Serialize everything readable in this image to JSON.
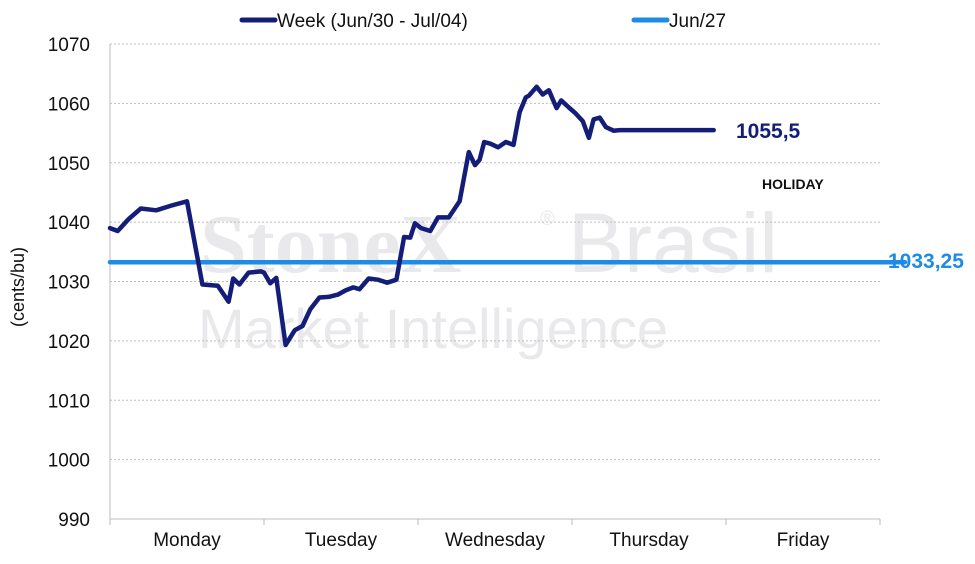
{
  "watermark": {
    "brand_bold": "StoneX",
    "brand_mark": "®",
    "brand_light": "Brasil",
    "tagline": "Market Intelligence"
  },
  "chart_data": {
    "type": "line",
    "ylabel": "(cents/bu)",
    "xlabel": "",
    "ylim": [
      990,
      1070
    ],
    "yticks": [
      990,
      1000,
      1010,
      1020,
      1030,
      1040,
      1050,
      1060,
      1070
    ],
    "categories": [
      "Monday",
      "Tuesday",
      "Wednesday",
      "Thursday",
      "Friday"
    ],
    "grid": "horizontal dotted",
    "legend_position": "top",
    "annotations": {
      "holiday": "HOLIDAY",
      "week_last": "1055,5",
      "reference": "1033,25"
    },
    "series": [
      {
        "name": "Week (Jun/30 - Jul/04)",
        "color": "#141e78",
        "x": [
          0,
          0.05,
          0.12,
          0.2,
          0.3,
          0.4,
          0.5,
          0.6,
          0.7,
          0.77,
          0.8,
          0.84,
          0.9,
          0.98,
          1.0,
          1.04,
          1.08,
          1.14,
          1.2,
          1.25,
          1.3,
          1.36,
          1.42,
          1.48,
          1.53,
          1.58,
          1.62,
          1.68,
          1.74,
          1.8,
          1.86,
          1.91,
          1.95,
          1.98,
          2.02,
          2.08,
          2.13,
          2.2,
          2.27,
          2.33,
          2.37,
          2.4,
          2.43,
          2.47,
          2.52,
          2.57,
          2.62,
          2.66,
          2.7,
          2.72,
          2.77,
          2.81,
          2.85,
          2.9,
          2.93,
          2.98,
          3.02,
          3.07,
          3.11,
          3.14,
          3.18,
          3.22,
          3.27,
          3.31,
          3.38,
          3.44,
          3.48,
          3.52,
          3.58,
          3.63,
          3.66,
          3.72,
          3.78,
          3.84,
          3.88,
          3.92,
          3.96
        ],
        "values": [
          1039,
          1038.5,
          1040.5,
          1042.3,
          1042,
          1042.8,
          1043.5,
          1029.5,
          1029.3,
          1026.6,
          1030.5,
          1029.5,
          1031.5,
          1031.7,
          1031.5,
          1029.7,
          1030.6,
          1019.3,
          1021.8,
          1022.5,
          1025.3,
          1027.3,
          1027.4,
          1027.8,
          1028.5,
          1029,
          1028.7,
          1030.5,
          1030.3,
          1029.8,
          1030.3,
          1037.5,
          1037.4,
          1039.8,
          1039,
          1038.5,
          1040.8,
          1040.8,
          1043.5,
          1051.8,
          1049.6,
          1050.5,
          1053.5,
          1053.2,
          1052.6,
          1053.5,
          1053,
          1058.5,
          1061,
          1061.3,
          1062.8,
          1061.5,
          1062.2,
          1059.2,
          1060.5,
          1059.3,
          1058.4,
          1057,
          1054.2,
          1057.3,
          1057.6,
          1056,
          1055.4,
          1055.5,
          1055.5,
          1055.5,
          1055.5,
          1055.5,
          1055.5,
          1055.5,
          1055.5,
          1055.5,
          1055.5,
          1055.5,
          1055.5,
          1055.5,
          1055.5
        ],
        "last_x": 3.95
      },
      {
        "name": "Jun/27",
        "color": "#1e8ce6",
        "x": [
          0,
          5
        ],
        "values": [
          1033.25,
          1033.25
        ]
      }
    ]
  }
}
